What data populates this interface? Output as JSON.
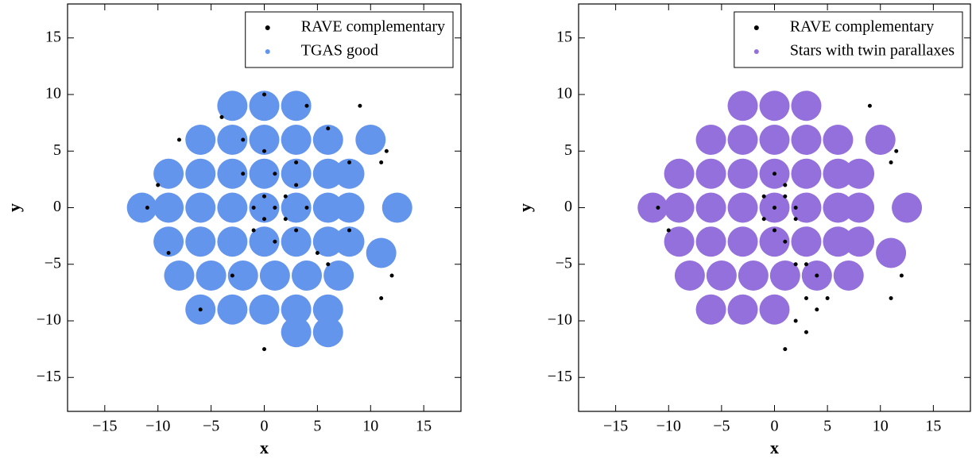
{
  "chart_data": [
    {
      "type": "scatter",
      "xlabel": "x",
      "ylabel": "y",
      "xlim": [
        -18.5,
        18.5
      ],
      "ylim": [
        -18,
        18
      ],
      "xticks": [
        {
          "value": -15,
          "label": "−15"
        },
        {
          "value": -10,
          "label": "−10"
        },
        {
          "value": -5,
          "label": "−5"
        },
        0,
        5,
        10,
        15
      ],
      "yticks": [
        {
          "value": -15,
          "label": "−15"
        },
        {
          "value": -10,
          "label": "−10"
        },
        {
          "value": -5,
          "label": "−5"
        },
        0,
        5,
        10,
        15
      ],
      "legend": "upper right",
      "series": [
        {
          "name": "RAVE complementary",
          "color": "#000000",
          "x": [
            0,
            1,
            -1,
            1,
            2,
            3,
            0,
            2,
            -1,
            3,
            4,
            1,
            -2,
            0,
            -4,
            0,
            4,
            6,
            8,
            8,
            6,
            -6,
            -9,
            -10,
            -8,
            11,
            11.5,
            12,
            11,
            0,
            -11,
            9,
            -3,
            5,
            3,
            -2
          ],
          "y": [
            -1,
            0,
            -2,
            -3,
            1,
            2,
            1,
            -1,
            0,
            -2,
            0,
            3,
            3,
            5,
            8,
            10,
            9,
            7,
            4,
            -2,
            -5,
            -9,
            -4,
            2,
            6,
            4,
            5,
            -6,
            -8,
            -12.5,
            0,
            9,
            -6,
            -4,
            4,
            6
          ]
        },
        {
          "name": "TGAS good",
          "color": "#6495ed",
          "x": [
            -3,
            0,
            3,
            -6,
            -3,
            0,
            3,
            6,
            -9,
            -6,
            -3,
            0,
            3,
            6,
            8,
            -9,
            -6,
            -3,
            0,
            3,
            6,
            8,
            -9,
            -6,
            -3,
            0,
            3,
            6,
            8,
            -8,
            -5,
            -2,
            1,
            4,
            7,
            -6,
            -3,
            0,
            3,
            6,
            3,
            6,
            -11.5,
            12.5,
            10,
            11
          ],
          "y": [
            9,
            9,
            9,
            6,
            6,
            6,
            6,
            6,
            3,
            3,
            3,
            3,
            3,
            3,
            3,
            0,
            0,
            0,
            0,
            0,
            0,
            0,
            -3,
            -3,
            -3,
            -3,
            -3,
            -3,
            -3,
            -6,
            -6,
            -6,
            -6,
            -6,
            -6,
            -9,
            -9,
            -9,
            -9,
            -9,
            -11,
            -11,
            0,
            0,
            6,
            -4
          ]
        }
      ]
    },
    {
      "type": "scatter",
      "xlabel": "x",
      "ylabel": "y",
      "xlim": [
        -18.5,
        18.5
      ],
      "ylim": [
        -18,
        18
      ],
      "xticks": [
        {
          "value": -15,
          "label": "−15"
        },
        {
          "value": -10,
          "label": "−10"
        },
        {
          "value": -5,
          "label": "−5"
        },
        0,
        5,
        10,
        15
      ],
      "yticks": [
        {
          "value": -15,
          "label": "−15"
        },
        {
          "value": -10,
          "label": "−10"
        },
        {
          "value": -5,
          "label": "−5"
        },
        0,
        5,
        10,
        15
      ],
      "legend": "upper right",
      "series": [
        {
          "name": "RAVE complementary",
          "color": "#000000",
          "x": [
            0,
            1,
            -1,
            2,
            0,
            1,
            3,
            4,
            2,
            3,
            4,
            5,
            2,
            3,
            1,
            11,
            11.5,
            12,
            11,
            -10,
            9,
            -11,
            -1,
            1,
            0,
            2
          ],
          "y": [
            0,
            1,
            -1,
            0,
            -2,
            -3,
            -5,
            -6,
            -5,
            -8,
            -9,
            -8,
            -10,
            -11,
            -12.5,
            4,
            5,
            -6,
            -8,
            -2,
            9,
            0,
            1,
            2,
            3,
            -1
          ]
        },
        {
          "name": "Stars with twin parallaxes",
          "color": "#9370db",
          "x": [
            -3,
            0,
            3,
            -6,
            -3,
            0,
            3,
            6,
            -9,
            -6,
            -3,
            0,
            3,
            6,
            8,
            -9,
            -6,
            -3,
            0,
            3,
            6,
            8,
            -9,
            -6,
            -3,
            0,
            3,
            6,
            8,
            -8,
            -5,
            -2,
            1,
            4,
            7,
            -6,
            -3,
            0,
            -11.5,
            12.5,
            10,
            11
          ],
          "y": [
            9,
            9,
            9,
            6,
            6,
            6,
            6,
            6,
            3,
            3,
            3,
            3,
            3,
            3,
            3,
            0,
            0,
            0,
            0,
            0,
            0,
            0,
            -3,
            -3,
            -3,
            -3,
            -3,
            -3,
            -3,
            -6,
            -6,
            -6,
            -6,
            -6,
            -6,
            -9,
            -9,
            -9,
            0,
            0,
            6,
            -4
          ]
        }
      ]
    }
  ]
}
